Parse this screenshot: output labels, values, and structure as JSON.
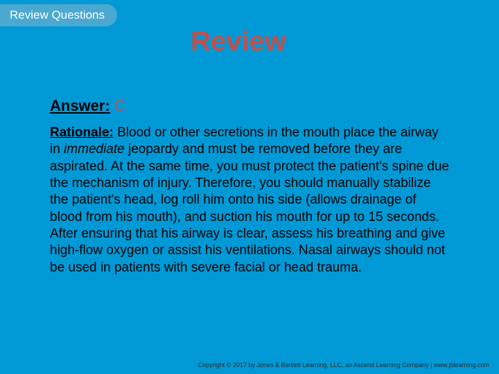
{
  "colors": {
    "background": "#0099d6",
    "tab_background": "#4ba8d0",
    "tab_text": "#ffffff",
    "title_text": "#c0504d",
    "answer_value": "#c0504d",
    "body_text": "#000000",
    "footer_text": "#2b2b2b"
  },
  "typography": {
    "tab_fontsize": 17,
    "title_fontsize": 40,
    "answer_fontsize": 22,
    "rationale_fontsize": 19,
    "footer_fontsize": 9,
    "font_family": "Arial"
  },
  "tab": {
    "label": "Review Questions"
  },
  "title": "Review",
  "answer": {
    "label": "Answer:",
    "value": " C"
  },
  "rationale": {
    "label": "Rationale:",
    "text_before_italic": " Blood or other secretions in the mouth place the airway in ",
    "italic_word": "immediate",
    "text_after_italic": " jeopardy and must be removed before they are aspirated. At the same time, you must protect the patient's spine due the mechanism of injury. Therefore, you should manually stabilize the patient's head, log roll him onto his side (allows drainage of blood from his mouth), and suction his mouth for up to 15 seconds. After ensuring that his airway is clear, assess his breathing and give high-flow oxygen or assist his ventilations. Nasal airways should not be used in patients with severe facial or head trauma."
  },
  "footer": {
    "text": "Copyright © 2017 by Jones & Bartlett Learning, LLC, an Ascend Learning Company | www.jblearning.com"
  }
}
